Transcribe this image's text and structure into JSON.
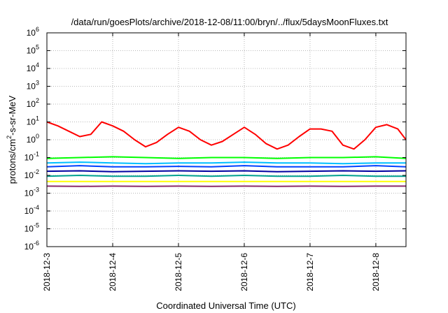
{
  "chart_data": {
    "type": "line",
    "title": "/data/run/goesPlots/archive/2018-12-08/11:00/bryn/../flux/5daysMoonFluxes.txt",
    "xlabel": "Coordinated Universal Time (UTC)",
    "ylabel": "protons/cm2-s-sr-MeV",
    "ylabel_parts": {
      "pre": "protons/cm",
      "sup": "2",
      "post": "-s-sr-MeV"
    },
    "yscale": "log",
    "ylim": [
      1e-06,
      1000000.0
    ],
    "xlim": [
      "2018-12-03T00:00",
      "2018-12-08T11:00"
    ],
    "grid": true,
    "xticks": [
      {
        "date": "2018-12-03T00:00",
        "label": "2018-12-3"
      },
      {
        "date": "2018-12-04T00:00",
        "label": "2018-12-4"
      },
      {
        "date": "2018-12-05T00:00",
        "label": "2018-12-5"
      },
      {
        "date": "2018-12-06T00:00",
        "label": "2018-12-6"
      },
      {
        "date": "2018-12-07T00:00",
        "label": "2018-12-7"
      },
      {
        "date": "2018-12-08T00:00",
        "label": "2018-12-8"
      }
    ],
    "yticks": [
      {
        "value": 1000000.0,
        "base": "10",
        "exp": "6"
      },
      {
        "value": 100000.0,
        "base": "10",
        "exp": "5"
      },
      {
        "value": 10000.0,
        "base": "10",
        "exp": "4"
      },
      {
        "value": 1000.0,
        "base": "10",
        "exp": "3"
      },
      {
        "value": 100.0,
        "base": "10",
        "exp": "2"
      },
      {
        "value": 10.0,
        "base": "10",
        "exp": "1"
      },
      {
        "value": 1.0,
        "base": "10",
        "exp": "0"
      },
      {
        "value": 0.1,
        "base": "10",
        "exp": "-1"
      },
      {
        "value": 0.01,
        "base": "10",
        "exp": "-2"
      },
      {
        "value": 0.001,
        "base": "10",
        "exp": "-3"
      },
      {
        "value": 0.0001,
        "base": "10",
        "exp": "-4"
      },
      {
        "value": 1e-05,
        "base": "10",
        "exp": "-5"
      },
      {
        "value": 1e-06,
        "base": "10",
        "exp": "-6"
      }
    ],
    "series": [
      {
        "color": "#ff0000",
        "x": [
          "2018-12-03T00:00",
          "2018-12-03T04:00",
          "2018-12-03T08:00",
          "2018-12-03T12:00",
          "2018-12-03T16:00",
          "2018-12-03T20:00",
          "2018-12-04T00:00",
          "2018-12-04T04:00",
          "2018-12-04T08:00",
          "2018-12-04T12:00",
          "2018-12-04T16:00",
          "2018-12-04T20:00",
          "2018-12-05T00:00",
          "2018-12-05T04:00",
          "2018-12-05T08:00",
          "2018-12-05T12:00",
          "2018-12-05T16:00",
          "2018-12-05T20:00",
          "2018-12-06T00:00",
          "2018-12-06T04:00",
          "2018-12-06T08:00",
          "2018-12-06T12:00",
          "2018-12-06T16:00",
          "2018-12-06T20:00",
          "2018-12-07T00:00",
          "2018-12-07T04:00",
          "2018-12-07T08:00",
          "2018-12-07T12:00",
          "2018-12-07T16:00",
          "2018-12-07T20:00",
          "2018-12-08T00:00",
          "2018-12-08T04:00",
          "2018-12-08T08:00",
          "2018-12-08T11:00"
        ],
        "y": [
          10,
          6,
          3,
          1.5,
          2,
          10,
          6,
          3,
          1,
          0.4,
          0.7,
          2,
          5,
          3,
          1,
          0.5,
          0.8,
          2,
          5,
          2,
          0.6,
          0.3,
          0.5,
          1.5,
          4,
          4,
          3,
          0.5,
          0.3,
          1,
          5,
          7,
          4,
          1
        ]
      },
      {
        "color": "#00ff00",
        "x": [
          "2018-12-03T00:00",
          "2018-12-03T12:00",
          "2018-12-04T00:00",
          "2018-12-04T12:00",
          "2018-12-05T00:00",
          "2018-12-05T12:00",
          "2018-12-06T00:00",
          "2018-12-06T12:00",
          "2018-12-07T00:00",
          "2018-12-07T12:00",
          "2018-12-08T00:00",
          "2018-12-08T11:00"
        ],
        "y": [
          0.09,
          0.1,
          0.11,
          0.1,
          0.09,
          0.1,
          0.1,
          0.09,
          0.1,
          0.1,
          0.11,
          0.09
        ]
      },
      {
        "color": "#00bfff",
        "x": [
          "2018-12-03T00:00",
          "2018-12-03T12:00",
          "2018-12-04T00:00",
          "2018-12-04T12:00",
          "2018-12-05T00:00",
          "2018-12-05T12:00",
          "2018-12-06T00:00",
          "2018-12-06T12:00",
          "2018-12-07T00:00",
          "2018-12-07T12:00",
          "2018-12-08T00:00",
          "2018-12-08T11:00"
        ],
        "y": [
          0.05,
          0.055,
          0.05,
          0.045,
          0.05,
          0.05,
          0.055,
          0.05,
          0.05,
          0.045,
          0.05,
          0.05
        ]
      },
      {
        "color": "#0040ff",
        "x": [
          "2018-12-03T00:00",
          "2018-12-03T12:00",
          "2018-12-04T00:00",
          "2018-12-04T12:00",
          "2018-12-05T00:00",
          "2018-12-05T12:00",
          "2018-12-06T00:00",
          "2018-12-06T12:00",
          "2018-12-07T00:00",
          "2018-12-07T12:00",
          "2018-12-08T00:00",
          "2018-12-08T11:00"
        ],
        "y": [
          0.03,
          0.035,
          0.03,
          0.03,
          0.032,
          0.03,
          0.035,
          0.03,
          0.03,
          0.03,
          0.035,
          0.03
        ]
      },
      {
        "color": "#0000a0",
        "x": [
          "2018-12-03T00:00",
          "2018-12-03T12:00",
          "2018-12-04T00:00",
          "2018-12-04T12:00",
          "2018-12-05T00:00",
          "2018-12-05T12:00",
          "2018-12-06T00:00",
          "2018-12-06T12:00",
          "2018-12-07T00:00",
          "2018-12-07T12:00",
          "2018-12-08T00:00",
          "2018-12-08T11:00"
        ],
        "y": [
          0.017,
          0.018,
          0.016,
          0.017,
          0.018,
          0.017,
          0.018,
          0.016,
          0.017,
          0.018,
          0.017,
          0.018
        ]
      },
      {
        "color": "#00a090",
        "x": [
          "2018-12-03T00:00",
          "2018-12-03T12:00",
          "2018-12-04T00:00",
          "2018-12-04T12:00",
          "2018-12-05T00:00",
          "2018-12-05T12:00",
          "2018-12-06T00:00",
          "2018-12-06T12:00",
          "2018-12-07T00:00",
          "2018-12-07T12:00",
          "2018-12-08T00:00",
          "2018-12-08T11:00"
        ],
        "y": [
          0.009,
          0.01,
          0.009,
          0.009,
          0.01,
          0.009,
          0.01,
          0.009,
          0.009,
          0.01,
          0.009,
          0.009
        ]
      },
      {
        "color": "#ffff00",
        "x": [
          "2018-12-03T00:00",
          "2018-12-03T12:00",
          "2018-12-04T00:00",
          "2018-12-04T12:00",
          "2018-12-05T00:00",
          "2018-12-05T12:00",
          "2018-12-06T00:00",
          "2018-12-06T12:00",
          "2018-12-07T00:00",
          "2018-12-07T12:00",
          "2018-12-08T00:00",
          "2018-12-08T11:00"
        ],
        "y": [
          0.0045,
          0.0045,
          0.0045,
          0.0045,
          0.0045,
          0.0045,
          0.0045,
          0.0045,
          0.0045,
          0.0045,
          0.0045,
          0.0045
        ]
      },
      {
        "color": "#8b2a6a",
        "x": [
          "2018-12-03T00:00",
          "2018-12-03T12:00",
          "2018-12-04T00:00",
          "2018-12-04T12:00",
          "2018-12-05T00:00",
          "2018-12-05T12:00",
          "2018-12-06T00:00",
          "2018-12-06T12:00",
          "2018-12-07T00:00",
          "2018-12-07T12:00",
          "2018-12-08T00:00",
          "2018-12-08T11:00"
        ],
        "y": [
          0.0025,
          0.0024,
          0.0025,
          0.0024,
          0.0025,
          0.0024,
          0.0025,
          0.0024,
          0.0025,
          0.0024,
          0.0025,
          0.0025
        ]
      }
    ]
  }
}
